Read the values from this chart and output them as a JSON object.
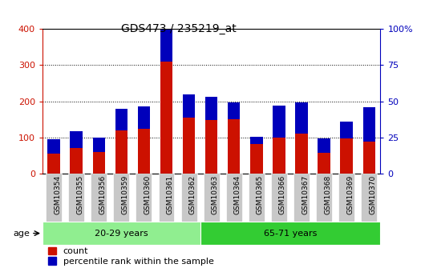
{
  "title": "GDS473 / 235219_at",
  "samples": [
    "GSM10354",
    "GSM10355",
    "GSM10356",
    "GSM10359",
    "GSM10360",
    "GSM10361",
    "GSM10362",
    "GSM10363",
    "GSM10364",
    "GSM10365",
    "GSM10366",
    "GSM10367",
    "GSM10368",
    "GSM10369",
    "GSM10370"
  ],
  "count": [
    55,
    70,
    60,
    120,
    125,
    310,
    155,
    148,
    150,
    83,
    100,
    110,
    57,
    97,
    88
  ],
  "percentile_scaled": [
    10,
    12,
    10,
    15,
    15,
    22,
    16,
    16,
    12,
    5,
    22,
    22,
    10,
    12,
    24
  ],
  "groups": [
    {
      "label": "20-29 years",
      "start": 0,
      "end": 7,
      "color": "#90EE90"
    },
    {
      "label": "65-71 years",
      "start": 7,
      "end": 15,
      "color": "#33CC33"
    }
  ],
  "ylim_left": [
    0,
    400
  ],
  "ylim_right": [
    0,
    100
  ],
  "yticks_left": [
    0,
    100,
    200,
    300,
    400
  ],
  "yticks_right_vals": [
    0,
    25,
    50,
    75,
    100
  ],
  "yticks_right_labels": [
    "0",
    "25",
    "50",
    "75",
    "100%"
  ],
  "bar_color_count": "#CC1100",
  "bar_color_percentile": "#0000BB",
  "bar_width": 0.55,
  "tick_bg_color": "#C8C8C8",
  "age_label": "age",
  "legend_count": "count",
  "legend_percentile": "percentile rank within the sample"
}
